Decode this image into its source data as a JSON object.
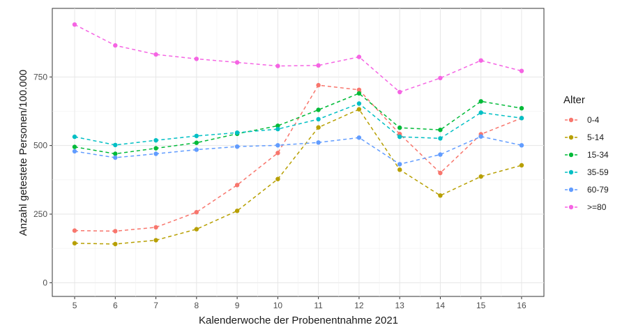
{
  "chart_data": {
    "type": "line",
    "title": "",
    "xlabel": "Kalenderwoche der Probenentnahme 2021",
    "ylabel": "Anzahl getestete Personen/100.000",
    "x": [
      5,
      6,
      7,
      8,
      9,
      10,
      11,
      12,
      13,
      14,
      15,
      16
    ],
    "x_tick_labels": [
      "5",
      "6",
      "7",
      "8",
      "9",
      "10",
      "11",
      "12",
      "13",
      "14",
      "15",
      "16"
    ],
    "y_ticks": [
      0,
      250,
      500,
      750
    ],
    "y_tick_labels": [
      "0",
      "250",
      "500",
      "750"
    ],
    "xlim": [
      4.45,
      16.55
    ],
    "ylim": [
      -50,
      1000
    ],
    "grid": true,
    "line_style": "dashed",
    "legend": {
      "title": "Alter",
      "placement": "right"
    },
    "series": [
      {
        "name": "0-4",
        "color": "#F8766D",
        "values": [
          190,
          188,
          202,
          257,
          356,
          473,
          720,
          703,
          542,
          400,
          541,
          600
        ]
      },
      {
        "name": "5-14",
        "color": "#B79F00",
        "values": [
          144,
          141,
          155,
          195,
          262,
          378,
          566,
          632,
          412,
          318,
          387,
          428
        ]
      },
      {
        "name": "15-34",
        "color": "#00BA38",
        "values": [
          495,
          470,
          490,
          510,
          543,
          572,
          630,
          690,
          565,
          557,
          661,
          636
        ]
      },
      {
        "name": "35-59",
        "color": "#00BFC4",
        "values": [
          532,
          502,
          519,
          535,
          547,
          560,
          596,
          653,
          532,
          526,
          620,
          600
        ]
      },
      {
        "name": "60-79",
        "color": "#619CFF",
        "values": [
          479,
          456,
          470,
          485,
          496,
          501,
          511,
          529,
          432,
          467,
          533,
          501
        ]
      },
      {
        "name": ">=80",
        "color": "#F564E3",
        "values": [
          941,
          865,
          832,
          816,
          803,
          790,
          792,
          823,
          695,
          746,
          810,
          772
        ]
      }
    ]
  }
}
